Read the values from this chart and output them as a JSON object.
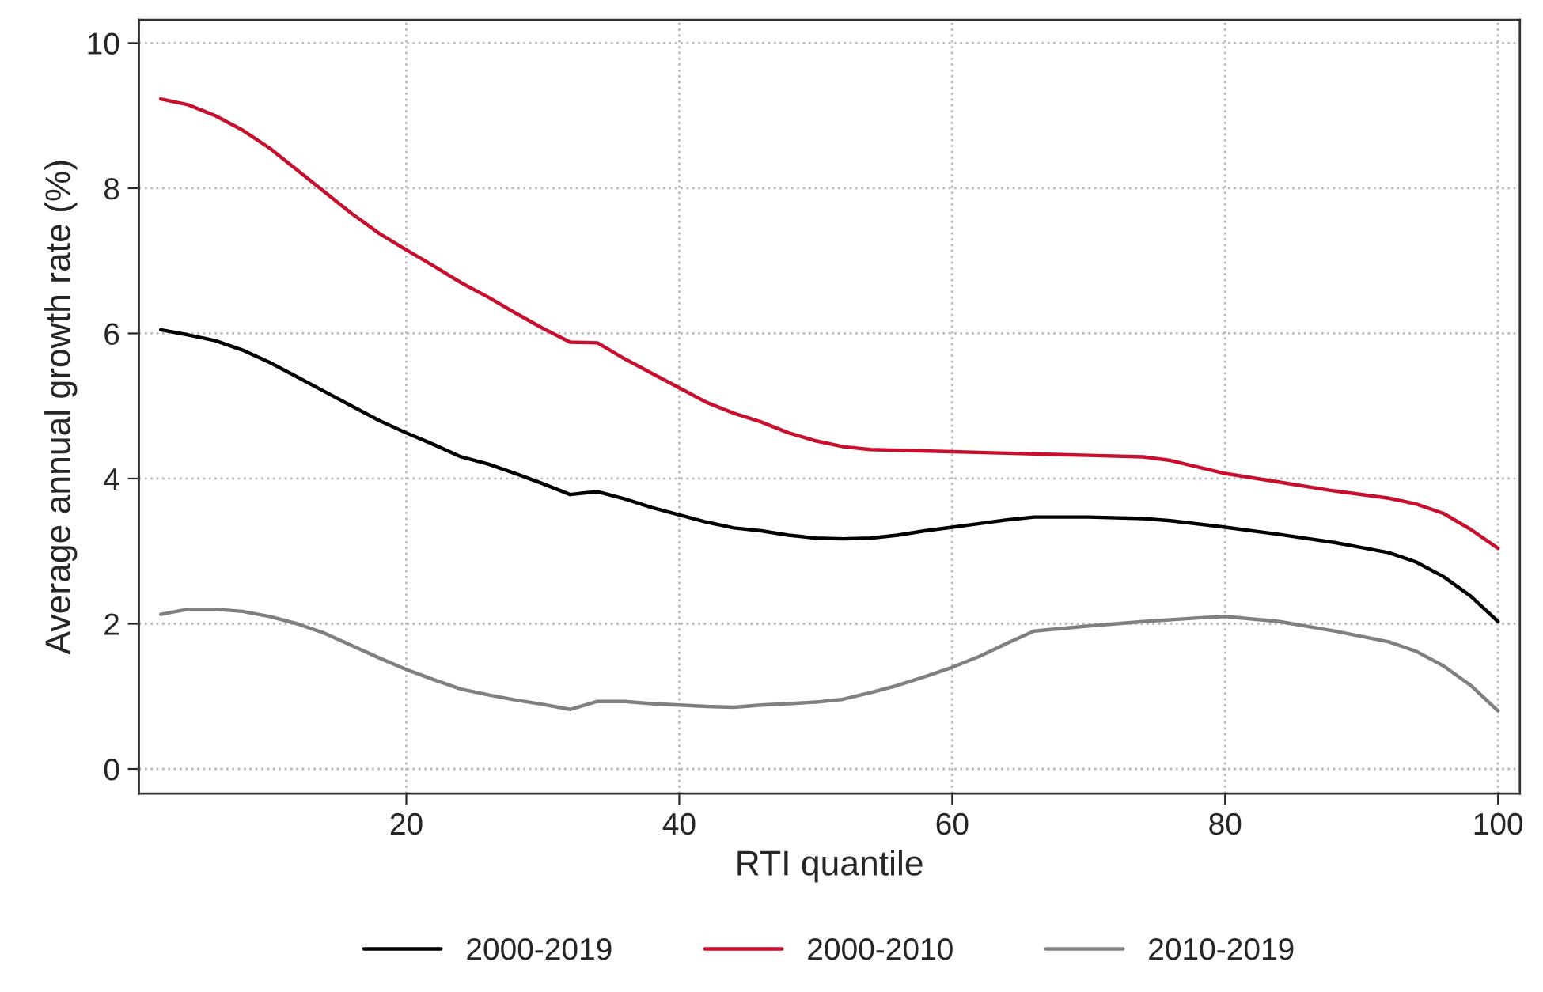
{
  "chart_data": {
    "type": "line",
    "xlabel": "RTI quantile",
    "ylabel": "Average annual growth rate (%)",
    "xlim": [
      0.4,
      101.6
    ],
    "xticks": [
      20,
      40,
      60,
      80,
      100
    ],
    "ylim": [
      -0.34,
      10.32
    ],
    "yticks": [
      0,
      2,
      4,
      6,
      8,
      10
    ],
    "grid": true,
    "legend": "bottom",
    "line_style": "solid",
    "series": [
      {
        "name": "2000-2019",
        "color": "#000000",
        "x": [
          2,
          4,
          6,
          8,
          10,
          12,
          14,
          16,
          18,
          20,
          22,
          24,
          26,
          28,
          30,
          32,
          33,
          34,
          36,
          38,
          40,
          42,
          44,
          46,
          48,
          50,
          52,
          54,
          56,
          58,
          60,
          62,
          64,
          66,
          70,
          74,
          76,
          80,
          84,
          88,
          90,
          92,
          94,
          96,
          98,
          100
        ],
        "values": [
          6.05,
          5.98,
          5.9,
          5.77,
          5.6,
          5.4,
          5.2,
          5.0,
          4.8,
          4.63,
          4.47,
          4.3,
          4.2,
          4.07,
          3.93,
          3.78,
          3.8,
          3.82,
          3.72,
          3.6,
          3.5,
          3.4,
          3.32,
          3.28,
          3.22,
          3.18,
          3.17,
          3.18,
          3.22,
          3.28,
          3.33,
          3.38,
          3.43,
          3.47,
          3.47,
          3.45,
          3.42,
          3.33,
          3.23,
          3.12,
          3.05,
          2.98,
          2.85,
          2.65,
          2.38,
          2.03
        ]
      },
      {
        "name": "2000-2010",
        "color": "#c8102e",
        "x": [
          2,
          4,
          6,
          8,
          10,
          12,
          14,
          16,
          18,
          20,
          22,
          24,
          26,
          28,
          30,
          32,
          34,
          36,
          38,
          40,
          42,
          44,
          46,
          48,
          50,
          52,
          54,
          56,
          60,
          64,
          68,
          70,
          74,
          76,
          80,
          84,
          88,
          92,
          94,
          96,
          98,
          100
        ],
        "values": [
          9.23,
          9.15,
          9.0,
          8.8,
          8.55,
          8.25,
          7.95,
          7.65,
          7.38,
          7.15,
          6.93,
          6.7,
          6.5,
          6.28,
          6.07,
          5.88,
          5.87,
          5.65,
          5.45,
          5.25,
          5.05,
          4.9,
          4.78,
          4.63,
          4.52,
          4.44,
          4.4,
          4.39,
          4.37,
          4.35,
          4.33,
          4.32,
          4.3,
          4.25,
          4.07,
          3.95,
          3.83,
          3.73,
          3.65,
          3.52,
          3.3,
          3.04
        ]
      },
      {
        "name": "2010-2019",
        "color": "#808080",
        "x": [
          2,
          4,
          6,
          8,
          10,
          12,
          14,
          16,
          18,
          20,
          22,
          24,
          26,
          28,
          30,
          32,
          34,
          36,
          38,
          40,
          42,
          44,
          46,
          48,
          50,
          52,
          54,
          56,
          58,
          60,
          62,
          64,
          66,
          70,
          74,
          78,
          80,
          84,
          88,
          92,
          94,
          96,
          98,
          100
        ],
        "values": [
          2.13,
          2.2,
          2.2,
          2.17,
          2.1,
          2.0,
          1.87,
          1.7,
          1.53,
          1.37,
          1.23,
          1.1,
          1.02,
          0.95,
          0.89,
          0.82,
          0.93,
          0.93,
          0.9,
          0.88,
          0.86,
          0.85,
          0.88,
          0.9,
          0.92,
          0.96,
          1.05,
          1.15,
          1.27,
          1.4,
          1.55,
          1.73,
          1.9,
          1.97,
          2.03,
          2.08,
          2.1,
          2.03,
          1.9,
          1.75,
          1.62,
          1.42,
          1.15,
          0.8
        ]
      }
    ]
  }
}
